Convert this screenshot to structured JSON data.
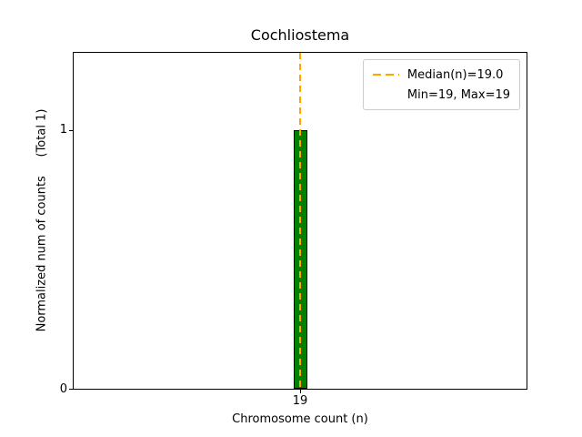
{
  "chart_data": {
    "type": "bar",
    "title": "Cochliostema",
    "xlabel": "Chromosome count (n)",
    "ylabel": "Normalized num of counts     (Total 1)",
    "categories": [
      "19"
    ],
    "values": [
      1
    ],
    "x_tick_labels": [
      "19"
    ],
    "y_tick_labels": [
      "0",
      "1"
    ],
    "ylim": [
      0,
      1.3
    ],
    "grid": false,
    "bar_color": "#008000",
    "bar_edge_color": "#000000",
    "median_line": {
      "value": 19.0,
      "color": "#FFA500",
      "style": "dashed",
      "orientation": "vertical"
    },
    "legend": {
      "position": "top-right",
      "entries": [
        {
          "label": "Median(n)=19.0",
          "marker": "dashed-line",
          "color": "#FFA500"
        },
        {
          "label": "Min=19, Max=19",
          "marker": "none",
          "color": ""
        }
      ]
    }
  }
}
